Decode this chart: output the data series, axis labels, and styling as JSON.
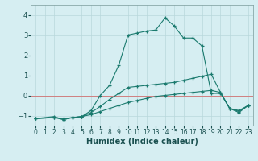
{
  "xlabel": "Humidex (Indice chaleur)",
  "xlim": [
    -0.5,
    23.5
  ],
  "ylim": [
    -1.5,
    4.5
  ],
  "background_color": "#d6eef2",
  "grid_color": "#b8d8dc",
  "line_color": "#1a7a6e",
  "hline_color": "#d08080",
  "yticks": [
    -1,
    0,
    1,
    2,
    3,
    4
  ],
  "xticks": [
    0,
    1,
    2,
    3,
    4,
    5,
    6,
    7,
    8,
    9,
    10,
    11,
    12,
    13,
    14,
    15,
    16,
    17,
    18,
    19,
    20,
    21,
    22,
    23
  ],
  "series": [
    {
      "x": [
        0,
        2,
        3,
        4,
        5,
        6,
        7,
        8,
        9,
        10,
        11,
        12,
        13,
        14,
        15,
        16,
        17,
        18,
        19,
        20,
        21,
        22,
        23
      ],
      "y": [
        -1.15,
        -1.1,
        -1.15,
        -1.1,
        -1.05,
        -0.95,
        -0.8,
        -0.65,
        -0.5,
        -0.35,
        -0.25,
        -0.15,
        -0.05,
        0.0,
        0.05,
        0.1,
        0.15,
        0.2,
        0.25,
        0.15,
        -0.65,
        -0.75,
        -0.5
      ]
    },
    {
      "x": [
        0,
        2,
        3,
        4,
        5,
        6,
        7,
        8,
        9,
        10,
        11,
        12,
        13,
        14,
        15,
        16,
        17,
        18,
        19,
        20,
        21,
        22,
        23
      ],
      "y": [
        -1.15,
        -1.1,
        -1.2,
        -1.1,
        -1.05,
        -0.85,
        -0.55,
        -0.2,
        0.1,
        0.4,
        0.45,
        0.5,
        0.55,
        0.6,
        0.65,
        0.75,
        0.85,
        0.95,
        1.05,
        0.15,
        -0.65,
        -0.8,
        -0.5
      ]
    },
    {
      "x": [
        0,
        2,
        3,
        4,
        5,
        6,
        7,
        8,
        9,
        10,
        11,
        12,
        13,
        14,
        15,
        16,
        17,
        18,
        19,
        20,
        21,
        22,
        23
      ],
      "y": [
        -1.15,
        -1.05,
        -1.2,
        -1.1,
        -1.05,
        -0.75,
        0.0,
        0.5,
        1.5,
        3.0,
        3.1,
        3.2,
        3.25,
        3.85,
        3.45,
        2.85,
        2.85,
        2.45,
        0.1,
        0.1,
        -0.65,
        -0.85,
        -0.5
      ]
    }
  ]
}
